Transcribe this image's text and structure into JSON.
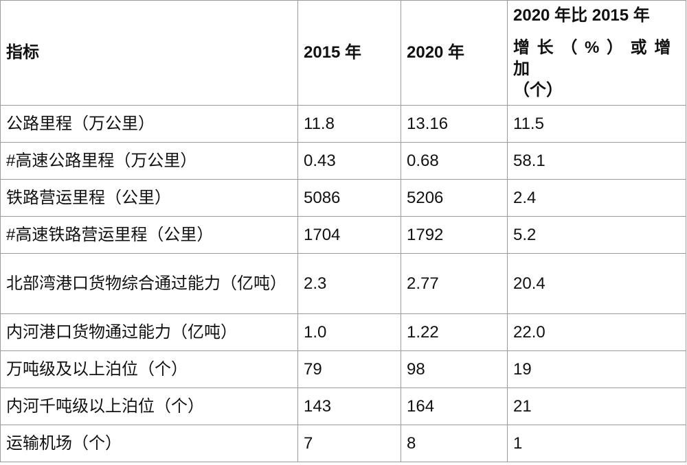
{
  "header": {
    "indicator": "指标",
    "y2015": "2015 年",
    "y2020": "2020 年",
    "growth_line1": "2020 年比 2015 年",
    "growth_line2": "增 长 （ % ） 或 增 加",
    "growth_line3": "（个）"
  },
  "rows": [
    {
      "indicator": "公路里程（万公里）",
      "v2015": "11.8",
      "v2020": "13.16",
      "growth": "11.5"
    },
    {
      "indicator": "#高速公路里程（万公里）",
      "v2015": "0.43",
      "v2020": "0.68",
      "growth": "58.1"
    },
    {
      "indicator": "铁路营运里程（公里）",
      "v2015": "5086",
      "v2020": "5206",
      "growth": "2.4"
    },
    {
      "indicator": "#高速铁路营运里程（公里）",
      "v2015": "1704",
      "v2020": "1792",
      "growth": "5.2"
    },
    {
      "indicator": "北部湾港口货物综合通过能力（亿吨）",
      "v2015": "2.3",
      "v2020": "2.77",
      "growth": "20.4"
    },
    {
      "indicator": "内河港口货物通过能力（亿吨）",
      "v2015": "1.0",
      "v2020": "1.22",
      "growth": "22.0"
    },
    {
      "indicator": "万吨级及以上泊位（个）",
      "v2015": "79",
      "v2020": "98",
      "growth": "19"
    },
    {
      "indicator": "内河千吨级以上泊位（个）",
      "v2015": "143",
      "v2020": "164",
      "growth": "21"
    },
    {
      "indicator": "运输机场（个）",
      "v2015": "7",
      "v2020": "8",
      "growth": "1"
    }
  ]
}
